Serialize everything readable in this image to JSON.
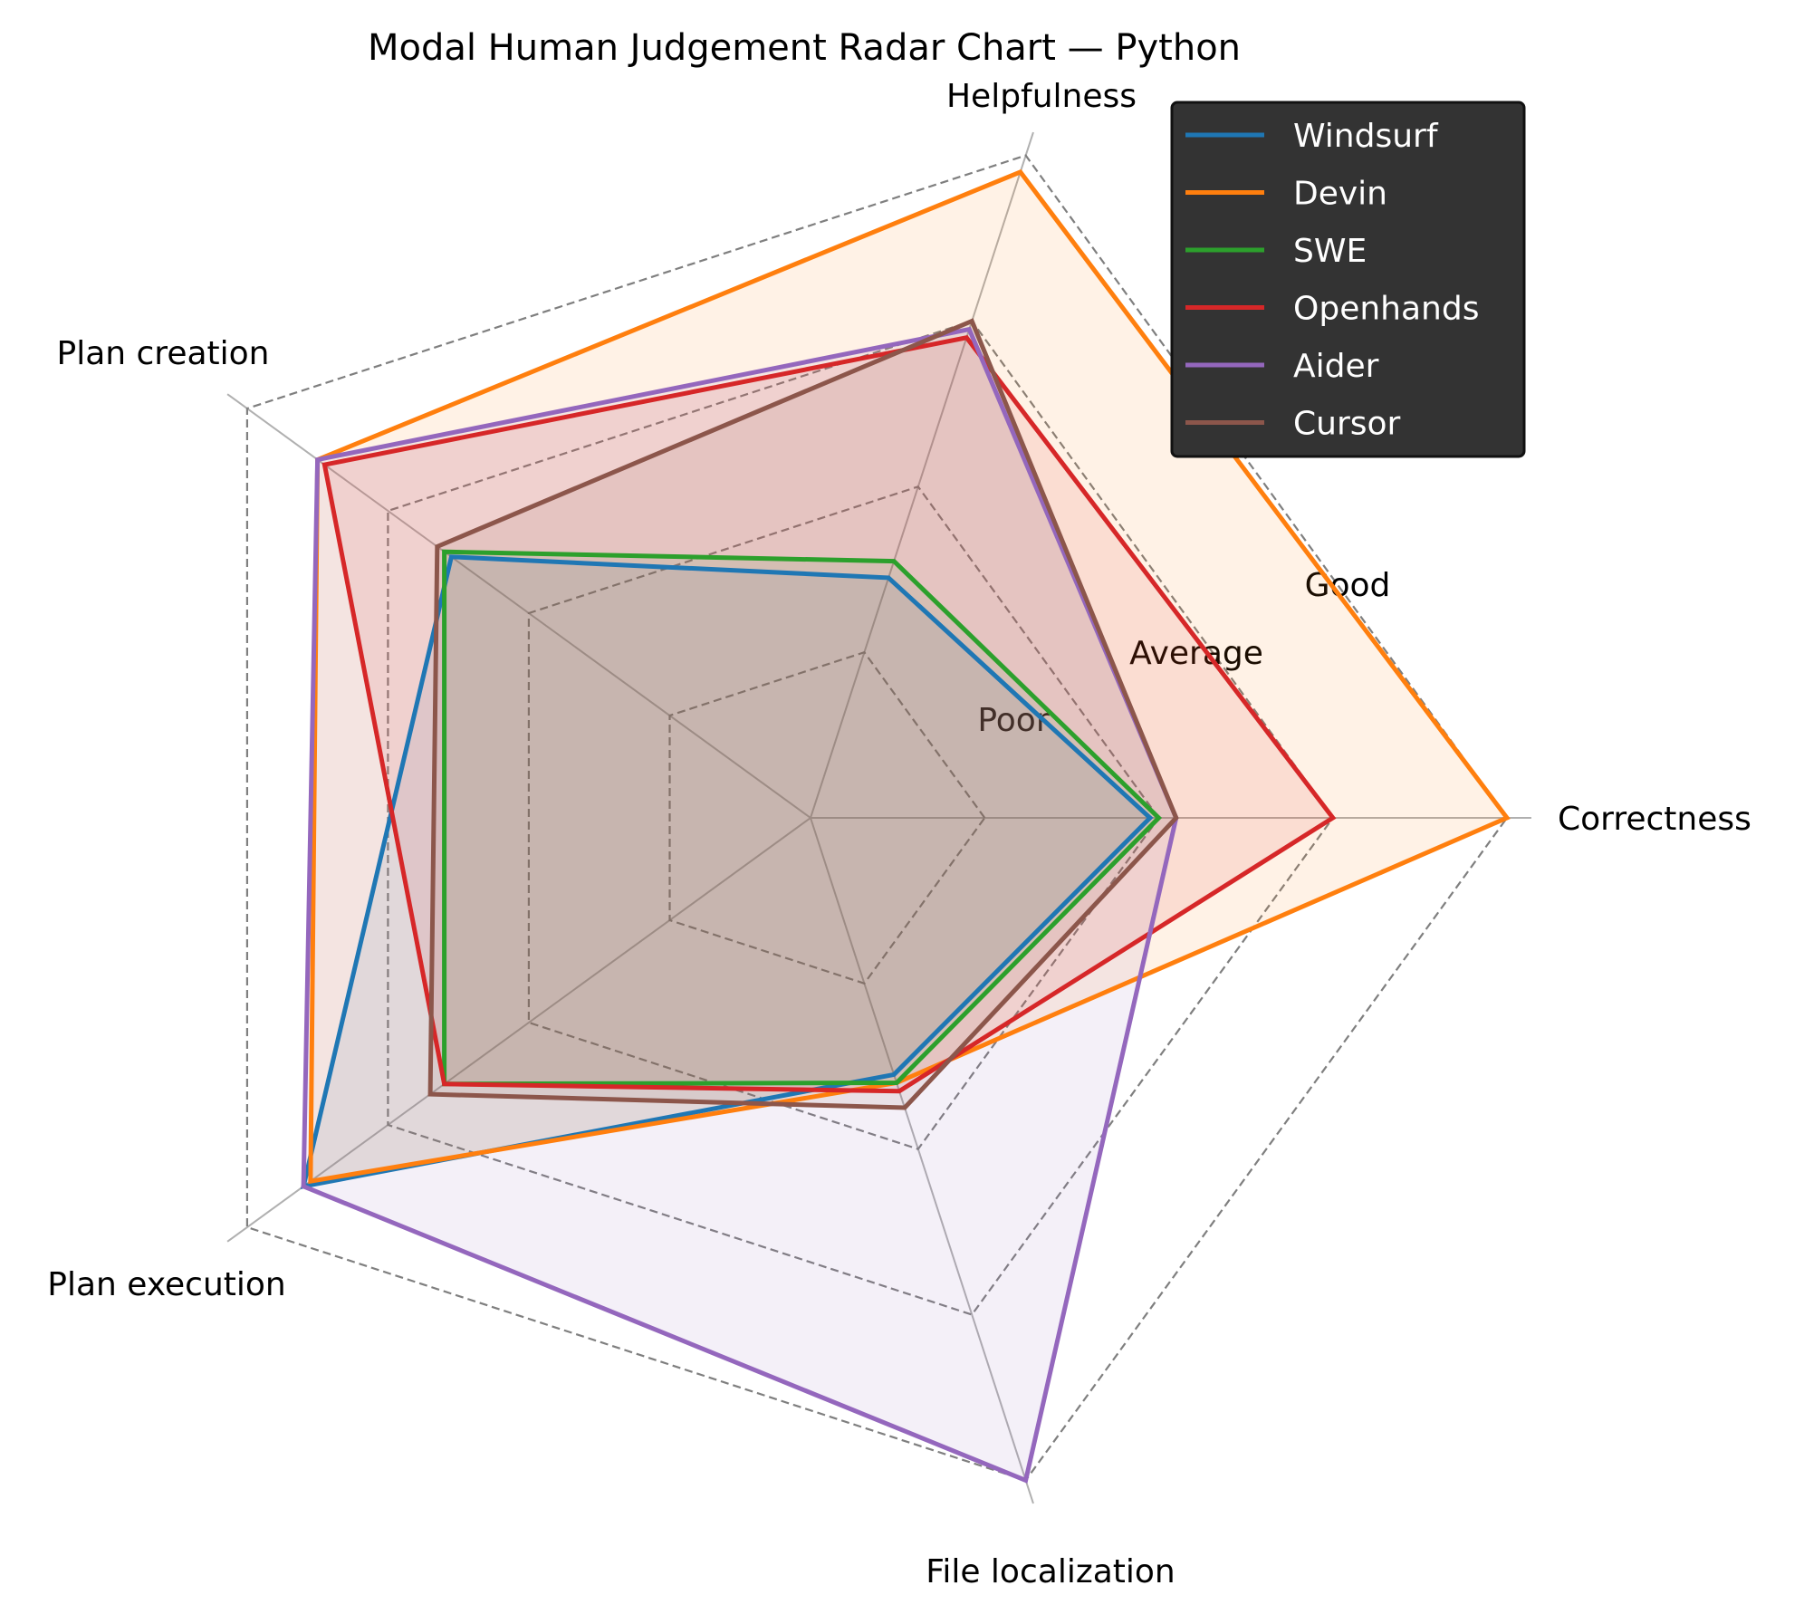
{
  "chart_data": {
    "type": "radar",
    "title": "Modal Human Judgement Radar Chart — Python",
    "axes": [
      "Correctness",
      "Helpfulness",
      "Plan creation",
      "Plan execution",
      "File localization"
    ],
    "levels": [
      "Poor",
      "Average",
      "Good"
    ],
    "scale_max": 4,
    "series": [
      {
        "name": "Windsurf",
        "color": "#1f77b4",
        "values": [
          1.95,
          1.45,
          2.55,
          3.6,
          1.55
        ]
      },
      {
        "name": "Devin",
        "color": "#ff7f0e",
        "values": [
          4.0,
          3.9,
          3.5,
          3.55,
          1.6
        ]
      },
      {
        "name": "SWE",
        "color": "#2ca02c",
        "values": [
          2.0,
          1.55,
          2.6,
          2.6,
          1.6
        ]
      },
      {
        "name": "Openhands",
        "color": "#d62728",
        "values": [
          3.0,
          2.9,
          3.45,
          2.6,
          1.65
        ]
      },
      {
        "name": "Aider",
        "color": "#9467bd",
        "values": [
          2.1,
          2.95,
          3.5,
          3.6,
          4.0
        ]
      },
      {
        "name": "Cursor",
        "color": "#8c564b",
        "values": [
          2.1,
          3.0,
          2.65,
          2.7,
          1.75
        ]
      }
    ]
  }
}
